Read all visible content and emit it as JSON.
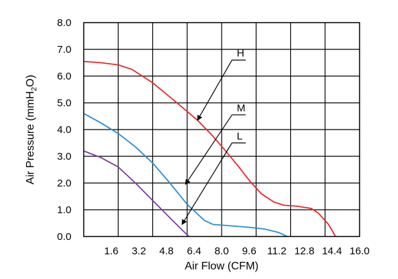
{
  "chart_data": {
    "type": "line",
    "xlabel": "Air Flow (CFM)",
    "ylabel_parts": [
      "Air Pressure (mmH",
      "2",
      "O)"
    ],
    "xlim": [
      0,
      16
    ],
    "ylim": [
      0,
      8
    ],
    "grid": true,
    "x_ticks": [
      {
        "value": 1.6,
        "label": "1.6"
      },
      {
        "value": 3.2,
        "label": "3.2"
      },
      {
        "value": 4.8,
        "label": "4.8"
      },
      {
        "value": 6.4,
        "label": "6.4"
      },
      {
        "value": 8.0,
        "label": "8.0"
      },
      {
        "value": 9.6,
        "label": "9.6"
      },
      {
        "value": 11.2,
        "label": "11.2"
      },
      {
        "value": 12.8,
        "label": "12.8"
      },
      {
        "value": 14.4,
        "label": "14.4"
      },
      {
        "value": 16.0,
        "label": "16.0"
      }
    ],
    "y_ticks": [
      {
        "value": 0,
        "label": "0.0"
      },
      {
        "value": 1,
        "label": "1.0"
      },
      {
        "value": 2,
        "label": "2.0"
      },
      {
        "value": 3,
        "label": "3.0"
      },
      {
        "value": 4,
        "label": "4.0"
      },
      {
        "value": 5,
        "label": "5.0"
      },
      {
        "value": 6,
        "label": "6.0"
      },
      {
        "value": 7,
        "label": "7.0"
      },
      {
        "value": 8,
        "label": "8.0"
      }
    ],
    "series": [
      {
        "name": "H",
        "color": "#e8262c",
        "points": [
          [
            0,
            6.55
          ],
          [
            1,
            6.5
          ],
          [
            2,
            6.42
          ],
          [
            2.8,
            6.25
          ],
          [
            4,
            5.75
          ],
          [
            5.5,
            4.95
          ],
          [
            6.6,
            4.35
          ],
          [
            7.5,
            3.75
          ],
          [
            8.3,
            3.15
          ],
          [
            9,
            2.6
          ],
          [
            9.6,
            2.1
          ],
          [
            10.3,
            1.6
          ],
          [
            11,
            1.3
          ],
          [
            11.6,
            1.17
          ],
          [
            12.4,
            1.13
          ],
          [
            13.2,
            1.05
          ],
          [
            13.6,
            0.88
          ],
          [
            14.2,
            0.45
          ],
          [
            14.5,
            0.12
          ],
          [
            14.6,
            0
          ]
        ]
      },
      {
        "name": "M",
        "color": "#2b8ccf",
        "points": [
          [
            0,
            4.6
          ],
          [
            1,
            4.25
          ],
          [
            2,
            3.85
          ],
          [
            3,
            3.35
          ],
          [
            4,
            2.75
          ],
          [
            5,
            2.0
          ],
          [
            6,
            1.2
          ],
          [
            7,
            0.6
          ],
          [
            7.5,
            0.45
          ],
          [
            8.5,
            0.4
          ],
          [
            9.5,
            0.35
          ],
          [
            10.5,
            0.28
          ],
          [
            11.3,
            0.15
          ],
          [
            11.8,
            0
          ]
        ]
      },
      {
        "name": "L",
        "color": "#7a3e9e",
        "points": [
          [
            0,
            3.2
          ],
          [
            1,
            2.95
          ],
          [
            2,
            2.6
          ],
          [
            3,
            2.0
          ],
          [
            4,
            1.35
          ],
          [
            5,
            0.7
          ],
          [
            5.7,
            0.25
          ],
          [
            6.1,
            0
          ]
        ]
      }
    ],
    "annotations": [
      {
        "label": "H",
        "label_at": [
          8.6,
          6.6
        ],
        "arrow_to": [
          6.6,
          4.35
        ]
      },
      {
        "label": "M",
        "label_at": [
          8.6,
          4.55
        ],
        "arrow_to": [
          5.9,
          1.95
        ]
      },
      {
        "label": "L",
        "label_at": [
          8.6,
          3.5
        ],
        "arrow_to": [
          5.7,
          0.45
        ]
      }
    ]
  }
}
